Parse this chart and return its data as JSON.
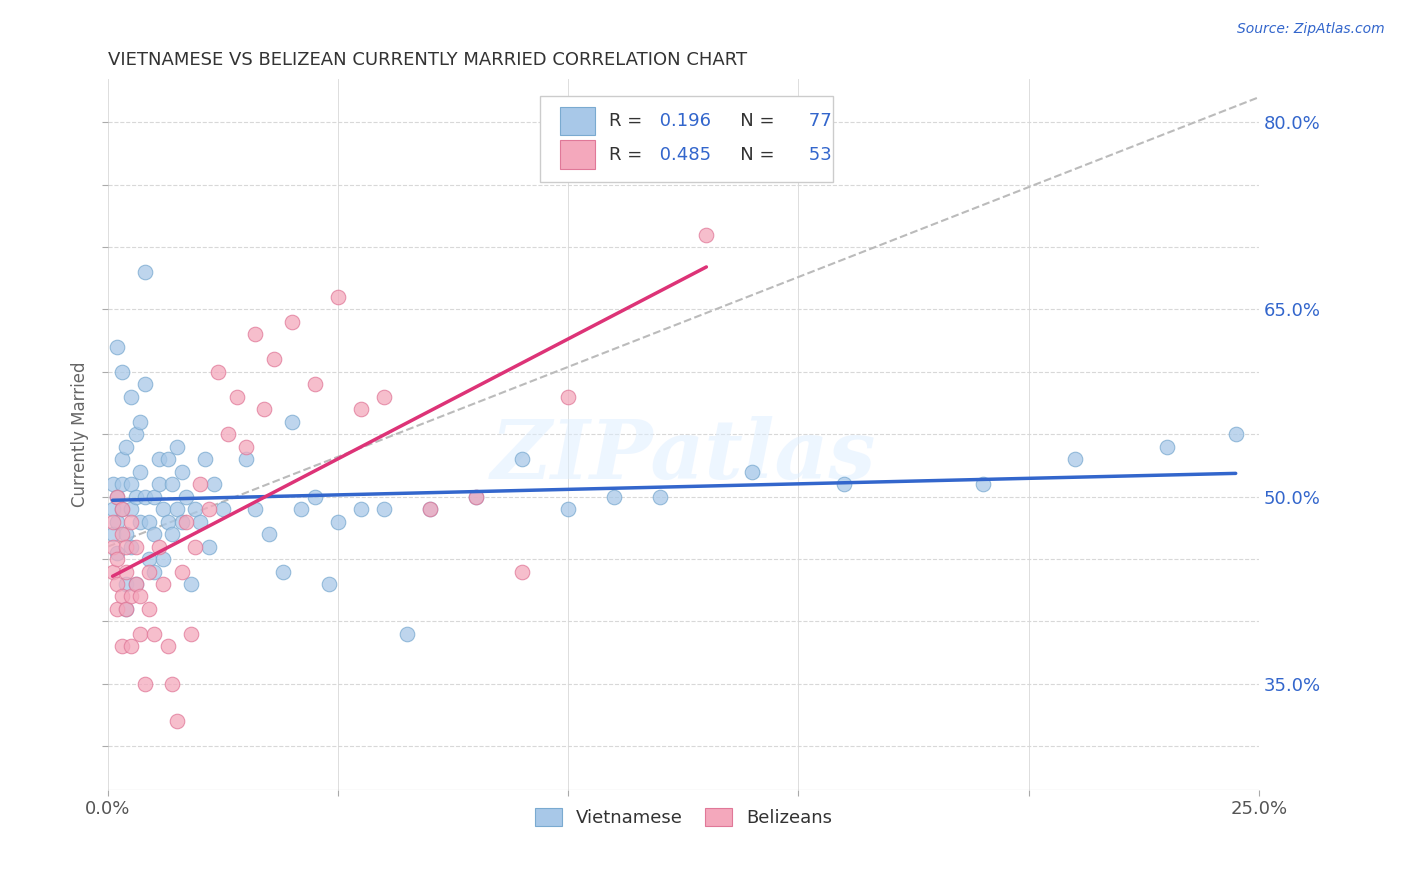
{
  "title": "VIETNAMESE VS BELIZEAN CURRENTLY MARRIED CORRELATION CHART",
  "source": "Source: ZipAtlas.com",
  "xlabel_label": "Vietnamese",
  "ylabel_label": "Currently Married",
  "xlim": [
    0.0,
    0.25
  ],
  "ylim": [
    0.265,
    0.835
  ],
  "xtick_positions": [
    0.0,
    0.05,
    0.1,
    0.15,
    0.2,
    0.25
  ],
  "xticklabels": [
    "0.0%",
    "",
    "",
    "",
    "",
    "25.0%"
  ],
  "ytick_positions": [
    0.3,
    0.35,
    0.4,
    0.45,
    0.5,
    0.55,
    0.6,
    0.65,
    0.7,
    0.75,
    0.8
  ],
  "yticklabels_right": [
    "",
    "35.0%",
    "",
    "",
    "50.0%",
    "",
    "",
    "65.0%",
    "",
    "",
    "80.0%"
  ],
  "blue_color": "#a8c8e8",
  "blue_edge": "#7aaad0",
  "pink_color": "#f4a8bc",
  "pink_edge": "#e07898",
  "trend_blue": "#3366cc",
  "trend_pink": "#dd3377",
  "ref_line_color": "#bbbbbb",
  "legend_R_blue": "0.196",
  "legend_N_blue": "77",
  "legend_R_pink": "0.485",
  "legend_N_pink": "53",
  "legend_label_blue": "Vietnamese",
  "legend_label_pink": "Belizeans",
  "watermark": "ZIPatlas",
  "background_color": "#ffffff",
  "blue_scatter_x": [
    0.001,
    0.001,
    0.001,
    0.002,
    0.002,
    0.002,
    0.002,
    0.003,
    0.003,
    0.003,
    0.003,
    0.004,
    0.004,
    0.004,
    0.004,
    0.005,
    0.005,
    0.005,
    0.005,
    0.006,
    0.006,
    0.006,
    0.007,
    0.007,
    0.007,
    0.008,
    0.008,
    0.008,
    0.009,
    0.009,
    0.01,
    0.01,
    0.01,
    0.011,
    0.011,
    0.012,
    0.012,
    0.013,
    0.013,
    0.014,
    0.014,
    0.015,
    0.015,
    0.016,
    0.016,
    0.017,
    0.018,
    0.019,
    0.02,
    0.021,
    0.022,
    0.023,
    0.025,
    0.03,
    0.032,
    0.035,
    0.038,
    0.04,
    0.042,
    0.045,
    0.048,
    0.05,
    0.055,
    0.06,
    0.065,
    0.07,
    0.08,
    0.09,
    0.1,
    0.11,
    0.12,
    0.14,
    0.16,
    0.19,
    0.21,
    0.23,
    0.245
  ],
  "blue_scatter_y": [
    0.49,
    0.51,
    0.47,
    0.5,
    0.48,
    0.455,
    0.62,
    0.49,
    0.51,
    0.53,
    0.6,
    0.47,
    0.54,
    0.43,
    0.41,
    0.58,
    0.51,
    0.46,
    0.49,
    0.55,
    0.5,
    0.43,
    0.48,
    0.52,
    0.56,
    0.59,
    0.68,
    0.5,
    0.45,
    0.48,
    0.47,
    0.5,
    0.44,
    0.51,
    0.53,
    0.49,
    0.45,
    0.53,
    0.48,
    0.51,
    0.47,
    0.54,
    0.49,
    0.48,
    0.52,
    0.5,
    0.43,
    0.49,
    0.48,
    0.53,
    0.46,
    0.51,
    0.49,
    0.53,
    0.49,
    0.47,
    0.44,
    0.56,
    0.49,
    0.5,
    0.43,
    0.48,
    0.49,
    0.49,
    0.39,
    0.49,
    0.5,
    0.53,
    0.49,
    0.5,
    0.5,
    0.52,
    0.51,
    0.51,
    0.53,
    0.54,
    0.55
  ],
  "pink_scatter_x": [
    0.001,
    0.001,
    0.001,
    0.002,
    0.002,
    0.002,
    0.002,
    0.003,
    0.003,
    0.003,
    0.003,
    0.004,
    0.004,
    0.004,
    0.005,
    0.005,
    0.005,
    0.006,
    0.006,
    0.007,
    0.007,
    0.008,
    0.009,
    0.009,
    0.01,
    0.011,
    0.012,
    0.013,
    0.014,
    0.015,
    0.016,
    0.017,
    0.018,
    0.019,
    0.02,
    0.022,
    0.024,
    0.026,
    0.028,
    0.03,
    0.032,
    0.034,
    0.036,
    0.04,
    0.045,
    0.05,
    0.055,
    0.06,
    0.07,
    0.08,
    0.09,
    0.1,
    0.13
  ],
  "pink_scatter_y": [
    0.48,
    0.46,
    0.44,
    0.5,
    0.45,
    0.43,
    0.41,
    0.47,
    0.49,
    0.42,
    0.38,
    0.46,
    0.44,
    0.41,
    0.48,
    0.42,
    0.38,
    0.46,
    0.43,
    0.42,
    0.39,
    0.35,
    0.44,
    0.41,
    0.39,
    0.46,
    0.43,
    0.38,
    0.35,
    0.32,
    0.44,
    0.48,
    0.39,
    0.46,
    0.51,
    0.49,
    0.6,
    0.55,
    0.58,
    0.54,
    0.63,
    0.57,
    0.61,
    0.64,
    0.59,
    0.66,
    0.57,
    0.58,
    0.49,
    0.5,
    0.44,
    0.58,
    0.71
  ]
}
